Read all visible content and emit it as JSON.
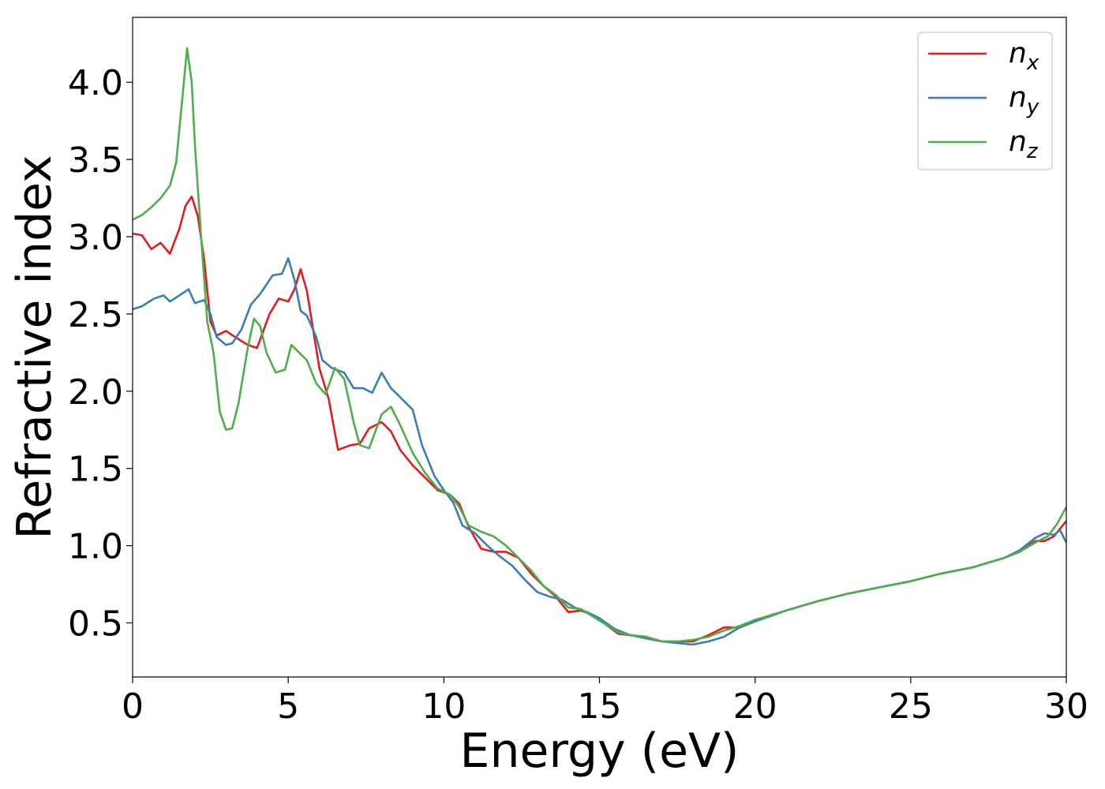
{
  "chart_data": {
    "type": "line",
    "title": "",
    "xlabel": "Energy (eV)",
    "ylabel": "Refractive index",
    "xlim": [
      0,
      30
    ],
    "ylim": [
      0.15,
      4.42
    ],
    "xticks": [
      0,
      5,
      10,
      15,
      20,
      25,
      30
    ],
    "xtick_labels": [
      "0",
      "5",
      "10",
      "15",
      "20",
      "25",
      "30"
    ],
    "yticks": [
      0.5,
      1.0,
      1.5,
      2.0,
      2.5,
      3.0,
      3.5,
      4.0
    ],
    "ytick_labels": [
      "0.5",
      "1.0",
      "1.5",
      "2.0",
      "2.5",
      "3.0",
      "3.5",
      "4.0"
    ],
    "grid": false,
    "legend_position": "top-right",
    "series": [
      {
        "name": "n",
        "subscript": "x",
        "color": "#e41a1c",
        "points": [
          [
            0,
            3.02
          ],
          [
            0.3,
            3.01
          ],
          [
            0.6,
            2.92
          ],
          [
            0.9,
            2.96
          ],
          [
            1.2,
            2.89
          ],
          [
            1.5,
            3.05
          ],
          [
            1.7,
            3.2
          ],
          [
            1.9,
            3.26
          ],
          [
            2.1,
            3.13
          ],
          [
            2.3,
            2.85
          ],
          [
            2.5,
            2.45
          ],
          [
            2.7,
            2.36
          ],
          [
            3.0,
            2.39
          ],
          [
            3.3,
            2.35
          ],
          [
            3.7,
            2.3
          ],
          [
            4.0,
            2.28
          ],
          [
            4.4,
            2.5
          ],
          [
            4.7,
            2.6
          ],
          [
            5.0,
            2.58
          ],
          [
            5.2,
            2.66
          ],
          [
            5.4,
            2.79
          ],
          [
            5.6,
            2.65
          ],
          [
            5.8,
            2.4
          ],
          [
            6.0,
            2.15
          ],
          [
            6.3,
            1.95
          ],
          [
            6.6,
            1.62
          ],
          [
            7.0,
            1.65
          ],
          [
            7.3,
            1.66
          ],
          [
            7.6,
            1.76
          ],
          [
            8.0,
            1.8
          ],
          [
            8.3,
            1.74
          ],
          [
            8.6,
            1.62
          ],
          [
            9.0,
            1.52
          ],
          [
            9.4,
            1.44
          ],
          [
            9.8,
            1.36
          ],
          [
            10.2,
            1.33
          ],
          [
            10.5,
            1.27
          ],
          [
            10.8,
            1.12
          ],
          [
            11.2,
            0.98
          ],
          [
            11.6,
            0.96
          ],
          [
            12.0,
            0.96
          ],
          [
            12.4,
            0.92
          ],
          [
            12.8,
            0.82
          ],
          [
            13.2,
            0.74
          ],
          [
            13.6,
            0.67
          ],
          [
            14.0,
            0.57
          ],
          [
            14.4,
            0.58
          ],
          [
            14.8,
            0.55
          ],
          [
            15.2,
            0.49
          ],
          [
            15.6,
            0.43
          ],
          [
            16.0,
            0.42
          ],
          [
            16.5,
            0.41
          ],
          [
            17.0,
            0.38
          ],
          [
            17.5,
            0.38
          ],
          [
            18.0,
            0.38
          ],
          [
            18.5,
            0.42
          ],
          [
            19.0,
            0.47
          ],
          [
            19.5,
            0.47
          ],
          [
            20.0,
            0.51
          ],
          [
            21.0,
            0.58
          ],
          [
            22.0,
            0.64
          ],
          [
            23.0,
            0.69
          ],
          [
            24.0,
            0.73
          ],
          [
            25.0,
            0.77
          ],
          [
            26.0,
            0.82
          ],
          [
            27.0,
            0.86
          ],
          [
            28.0,
            0.92
          ],
          [
            28.5,
            0.96
          ],
          [
            29.0,
            1.03
          ],
          [
            29.3,
            1.03
          ],
          [
            29.6,
            1.06
          ],
          [
            30.0,
            1.16
          ]
        ]
      },
      {
        "name": "n",
        "subscript": "y",
        "color": "#377eb8",
        "points": [
          [
            0,
            2.53
          ],
          [
            0.3,
            2.55
          ],
          [
            0.7,
            2.6
          ],
          [
            1.0,
            2.62
          ],
          [
            1.2,
            2.58
          ],
          [
            1.5,
            2.62
          ],
          [
            1.8,
            2.66
          ],
          [
            2.0,
            2.57
          ],
          [
            2.3,
            2.59
          ],
          [
            2.5,
            2.5
          ],
          [
            2.7,
            2.35
          ],
          [
            3.0,
            2.3
          ],
          [
            3.2,
            2.31
          ],
          [
            3.5,
            2.4
          ],
          [
            3.8,
            2.56
          ],
          [
            4.1,
            2.63
          ],
          [
            4.5,
            2.75
          ],
          [
            4.8,
            2.76
          ],
          [
            5.0,
            2.86
          ],
          [
            5.2,
            2.72
          ],
          [
            5.4,
            2.52
          ],
          [
            5.6,
            2.49
          ],
          [
            5.9,
            2.35
          ],
          [
            6.1,
            2.2
          ],
          [
            6.4,
            2.15
          ],
          [
            6.8,
            2.12
          ],
          [
            7.1,
            2.02
          ],
          [
            7.4,
            2.02
          ],
          [
            7.7,
            1.99
          ],
          [
            8.0,
            2.12
          ],
          [
            8.3,
            2.02
          ],
          [
            8.6,
            1.96
          ],
          [
            9.0,
            1.88
          ],
          [
            9.3,
            1.65
          ],
          [
            9.7,
            1.45
          ],
          [
            10.0,
            1.36
          ],
          [
            10.3,
            1.28
          ],
          [
            10.6,
            1.13
          ],
          [
            11.0,
            1.08
          ],
          [
            11.4,
            1.0
          ],
          [
            11.8,
            0.93
          ],
          [
            12.2,
            0.87
          ],
          [
            12.6,
            0.78
          ],
          [
            13.0,
            0.7
          ],
          [
            13.4,
            0.67
          ],
          [
            13.8,
            0.65
          ],
          [
            14.2,
            0.6
          ],
          [
            14.6,
            0.57
          ],
          [
            15.0,
            0.53
          ],
          [
            15.5,
            0.46
          ],
          [
            16.0,
            0.42
          ],
          [
            16.5,
            0.4
          ],
          [
            17.0,
            0.38
          ],
          [
            17.5,
            0.37
          ],
          [
            18.0,
            0.36
          ],
          [
            18.5,
            0.38
          ],
          [
            19.0,
            0.41
          ],
          [
            19.5,
            0.47
          ],
          [
            20.0,
            0.51
          ],
          [
            21.0,
            0.58
          ],
          [
            22.0,
            0.64
          ],
          [
            23.0,
            0.69
          ],
          [
            24.0,
            0.73
          ],
          [
            25.0,
            0.77
          ],
          [
            26.0,
            0.82
          ],
          [
            27.0,
            0.86
          ],
          [
            28.0,
            0.92
          ],
          [
            28.5,
            0.97
          ],
          [
            29.0,
            1.05
          ],
          [
            29.3,
            1.08
          ],
          [
            29.6,
            1.07
          ],
          [
            29.8,
            1.1
          ],
          [
            30.0,
            1.02
          ]
        ]
      },
      {
        "name": "n",
        "subscript": "z",
        "color": "#4daf4a",
        "points": [
          [
            0,
            3.11
          ],
          [
            0.3,
            3.14
          ],
          [
            0.6,
            3.19
          ],
          [
            0.9,
            3.25
          ],
          [
            1.2,
            3.33
          ],
          [
            1.4,
            3.48
          ],
          [
            1.6,
            3.9
          ],
          [
            1.75,
            4.22
          ],
          [
            1.9,
            4.0
          ],
          [
            2.0,
            3.6
          ],
          [
            2.2,
            3.0
          ],
          [
            2.4,
            2.45
          ],
          [
            2.6,
            2.25
          ],
          [
            2.8,
            1.87
          ],
          [
            3.0,
            1.75
          ],
          [
            3.2,
            1.76
          ],
          [
            3.4,
            1.92
          ],
          [
            3.7,
            2.28
          ],
          [
            3.9,
            2.47
          ],
          [
            4.1,
            2.42
          ],
          [
            4.3,
            2.25
          ],
          [
            4.6,
            2.12
          ],
          [
            4.9,
            2.14
          ],
          [
            5.1,
            2.3
          ],
          [
            5.3,
            2.26
          ],
          [
            5.6,
            2.2
          ],
          [
            5.9,
            2.05
          ],
          [
            6.2,
            1.98
          ],
          [
            6.5,
            2.15
          ],
          [
            6.8,
            2.08
          ],
          [
            7.1,
            1.8
          ],
          [
            7.3,
            1.65
          ],
          [
            7.6,
            1.63
          ],
          [
            8.0,
            1.85
          ],
          [
            8.3,
            1.9
          ],
          [
            8.6,
            1.78
          ],
          [
            9.0,
            1.6
          ],
          [
            9.4,
            1.47
          ],
          [
            9.8,
            1.37
          ],
          [
            10.2,
            1.33
          ],
          [
            10.5,
            1.25
          ],
          [
            10.8,
            1.13
          ],
          [
            11.2,
            1.09
          ],
          [
            11.6,
            1.06
          ],
          [
            12.0,
            1.0
          ],
          [
            12.4,
            0.92
          ],
          [
            12.8,
            0.84
          ],
          [
            13.2,
            0.74
          ],
          [
            13.6,
            0.68
          ],
          [
            14.0,
            0.6
          ],
          [
            14.4,
            0.59
          ],
          [
            14.8,
            0.54
          ],
          [
            15.2,
            0.49
          ],
          [
            15.6,
            0.44
          ],
          [
            16.0,
            0.42
          ],
          [
            16.5,
            0.41
          ],
          [
            17.0,
            0.38
          ],
          [
            17.5,
            0.38
          ],
          [
            18.0,
            0.39
          ],
          [
            18.5,
            0.41
          ],
          [
            19.0,
            0.45
          ],
          [
            19.5,
            0.48
          ],
          [
            20.0,
            0.52
          ],
          [
            21.0,
            0.58
          ],
          [
            22.0,
            0.64
          ],
          [
            23.0,
            0.69
          ],
          [
            24.0,
            0.73
          ],
          [
            25.0,
            0.77
          ],
          [
            26.0,
            0.82
          ],
          [
            27.0,
            0.86
          ],
          [
            28.0,
            0.92
          ],
          [
            28.5,
            0.96
          ],
          [
            29.0,
            1.02
          ],
          [
            29.4,
            1.06
          ],
          [
            29.7,
            1.14
          ],
          [
            30.0,
            1.25
          ]
        ]
      }
    ]
  }
}
